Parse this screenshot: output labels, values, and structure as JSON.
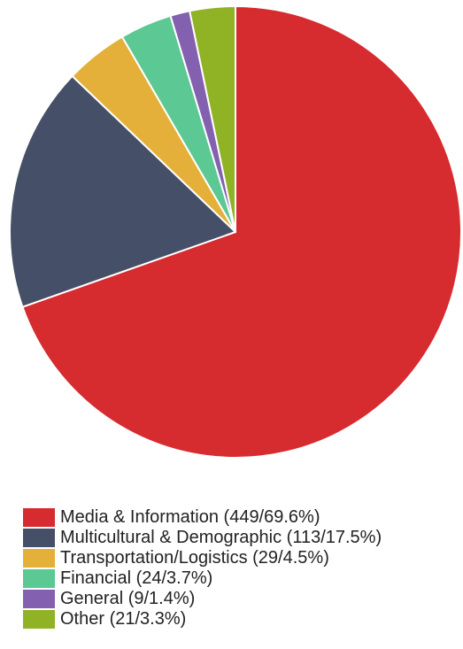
{
  "chart_data": {
    "type": "pie",
    "legend_position": "bottom",
    "slices": [
      {
        "label": "Media & Information (449/69.6%)",
        "name": "Media & Information",
        "count": 449,
        "percent": 69.6,
        "color": "#d62b2f"
      },
      {
        "label": "Multicultural & Demographic (113/17.5%)",
        "name": "Multicultural & Demographic",
        "count": 113,
        "percent": 17.5,
        "color": "#454f68"
      },
      {
        "label": "Transportation/Logistics (29/4.5%)",
        "name": "Transportation/Logistics",
        "count": 29,
        "percent": 4.5,
        "color": "#e5b039"
      },
      {
        "label": "Financial (24/3.7%)",
        "name": "Financial",
        "count": 24,
        "percent": 3.7,
        "color": "#5cc893"
      },
      {
        "label": "General (9/1.4%)",
        "name": "General",
        "count": 9,
        "percent": 1.4,
        "color": "#8461b0"
      },
      {
        "label": "Other (21/3.3%)",
        "name": "Other",
        "count": 21,
        "percent": 3.3,
        "color": "#8fb325"
      }
    ]
  }
}
